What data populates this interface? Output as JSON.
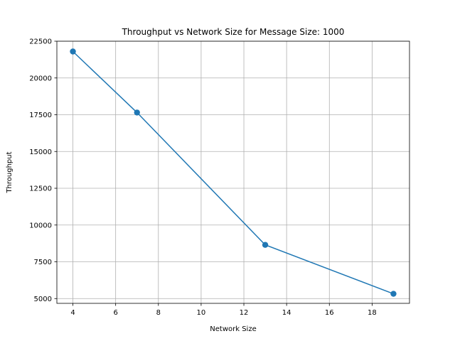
{
  "chart_data": {
    "type": "line",
    "title": "Throughput vs Network Size for Message Size: 1000",
    "xlabel": "Network Size",
    "ylabel": "Throughput",
    "xlim": [
      3.25,
      19.75
    ],
    "ylim": [
      4675,
      22500
    ],
    "xticks": [
      4,
      6,
      8,
      10,
      12,
      14,
      16,
      18
    ],
    "yticks": [
      5000,
      7500,
      10000,
      12500,
      15000,
      17500,
      20000,
      22500
    ],
    "grid": true,
    "series": [
      {
        "color": "#1f77b4",
        "marker": "circle",
        "x": [
          4,
          7,
          13,
          19
        ],
        "y": [
          21800,
          17650,
          8650,
          5325
        ]
      }
    ]
  }
}
